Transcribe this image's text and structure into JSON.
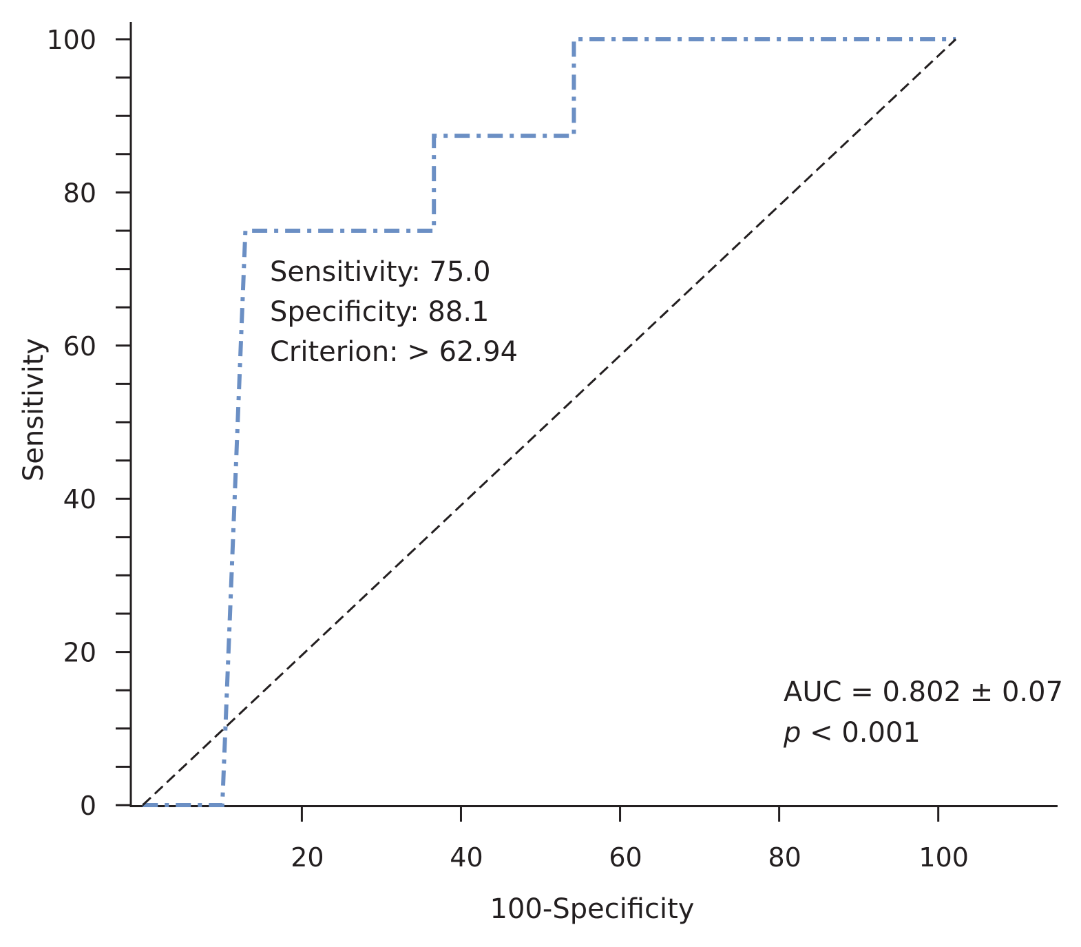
{
  "chart_data": {
    "type": "line",
    "xlabel": "100-Specificity",
    "ylabel": "Sensitivity",
    "xlim": [
      -1.5,
      115
    ],
    "ylim": [
      0,
      100
    ],
    "x_ticks": [
      20,
      40,
      60,
      80,
      100
    ],
    "x_tick_labels": [
      "20",
      "40",
      "60",
      "80",
      "100"
    ],
    "y_ticks": [
      0,
      20,
      40,
      60,
      80,
      100
    ],
    "y_tick_labels": [
      "0",
      "20",
      "40",
      "60",
      "80",
      "100"
    ],
    "y_minor_ticks": [
      5,
      10,
      15,
      25,
      30,
      35,
      45,
      50,
      55,
      65,
      70,
      75,
      85,
      90,
      95
    ],
    "grid": false,
    "series": [
      {
        "color": "#6b8fc4",
        "style": "dash-dot",
        "x": [
          0,
          10,
          12.9,
          12.9,
          36.6,
          36.6,
          54.2,
          54.2,
          102.2
        ],
        "y": [
          0,
          0,
          75,
          75,
          75,
          87.4,
          87.4,
          100,
          100
        ]
      },
      {
        "color": "#231f20",
        "style": "dashed",
        "x": [
          0,
          102.2
        ],
        "y": [
          0,
          100
        ]
      }
    ],
    "annotations": {
      "sensitivity": "Sensitivity: 75.0",
      "specificity": "Specificity: 88.1",
      "criterion": "Criterion: > 62.94",
      "auc": "AUC = 0.802 ± 0.07",
      "p_symbol": "p",
      "p_rest": " < 0.001"
    }
  }
}
